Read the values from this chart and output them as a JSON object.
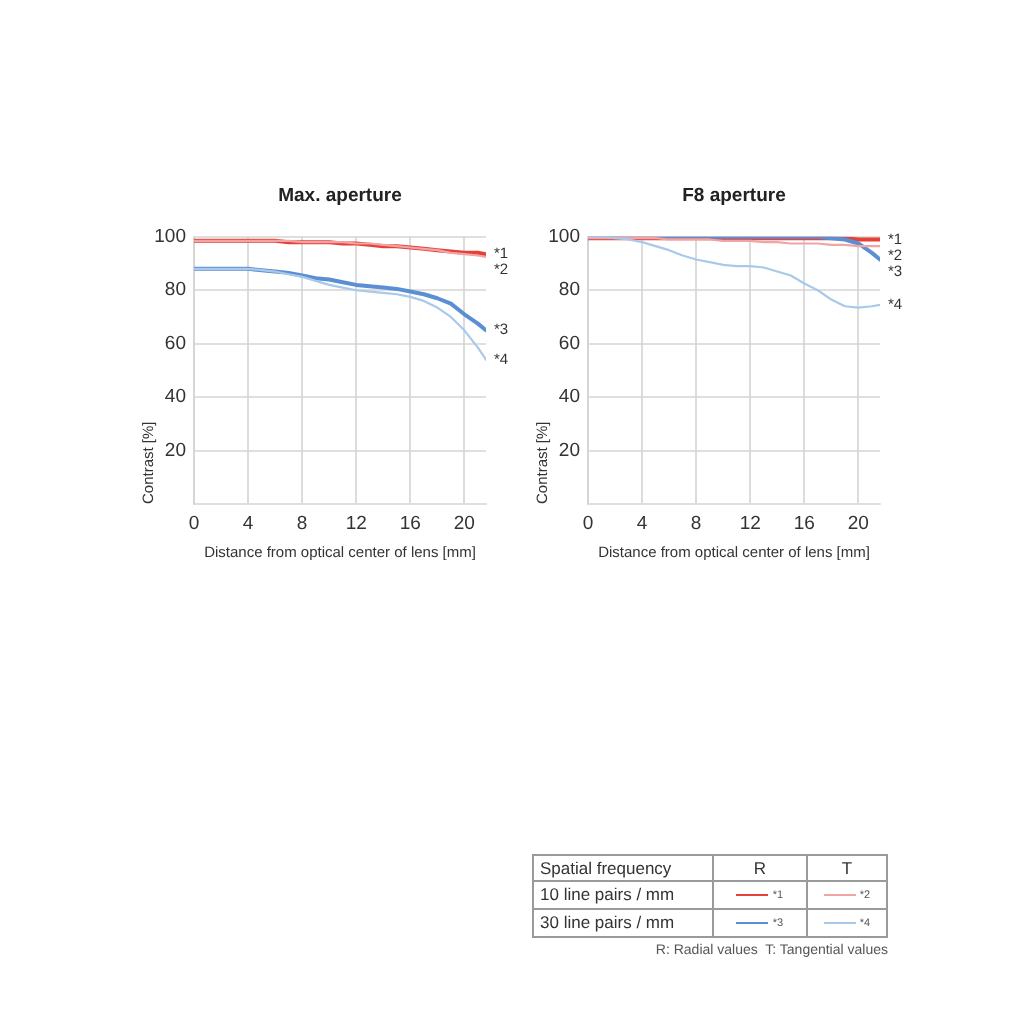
{
  "chart_data": [
    {
      "type": "line",
      "title": "Max. aperture",
      "xlabel": "Distance from optical center of lens [mm]",
      "ylabel": "Contrast [%]",
      "x": [
        0,
        1,
        2,
        3,
        4,
        5,
        6,
        7,
        8,
        9,
        10,
        11,
        12,
        13,
        14,
        15,
        16,
        17,
        18,
        19,
        20,
        21,
        21.6
      ],
      "xlim": [
        0,
        21.6
      ],
      "xticks": [
        0,
        4,
        8,
        12,
        16,
        20
      ],
      "ylim": [
        0,
        100
      ],
      "yticks": [
        20,
        40,
        60,
        80,
        100
      ],
      "grid": true,
      "marker": "none",
      "line_style": "solid",
      "series": [
        {
          "name": "*1",
          "color": "#e5403a",
          "values": [
            98.5,
            98.5,
            98.5,
            98.5,
            98.5,
            98.5,
            98.5,
            98,
            98,
            98,
            98,
            97.5,
            97.5,
            97,
            96.5,
            96.5,
            96,
            95.5,
            95,
            94.5,
            94,
            94,
            93.5
          ]
        },
        {
          "name": "*2",
          "color": "#f2a3a3",
          "values": [
            98.5,
            98.5,
            98.5,
            98.5,
            98.5,
            98.5,
            98.5,
            98.5,
            98,
            98,
            98,
            98,
            97.5,
            97.5,
            97,
            96.5,
            96,
            95.5,
            95,
            94,
            93.5,
            93,
            92.5
          ]
        },
        {
          "name": "*3",
          "color": "#5a8fd3",
          "values": [
            88,
            88,
            88,
            88,
            88,
            87.5,
            87,
            86.5,
            85.5,
            84.5,
            84,
            83,
            82,
            81.5,
            81,
            80.5,
            79.5,
            78.5,
            77,
            75,
            71,
            67.5,
            65
          ]
        },
        {
          "name": "*4",
          "color": "#a9c9ea",
          "values": [
            88,
            88,
            88,
            88,
            88,
            87.5,
            87,
            86,
            85,
            83.5,
            82,
            81,
            80,
            79.5,
            79,
            78.5,
            77.5,
            76,
            73.5,
            70,
            65,
            58.5,
            54
          ]
        }
      ]
    },
    {
      "type": "line",
      "title": "F8 aperture",
      "xlabel": "Distance from optical center of lens [mm]",
      "ylabel": "Contrast [%]",
      "x": [
        0,
        1,
        2,
        3,
        4,
        5,
        6,
        7,
        8,
        9,
        10,
        11,
        12,
        13,
        14,
        15,
        16,
        17,
        18,
        19,
        20,
        21,
        21.6
      ],
      "xlim": [
        0,
        21.6
      ],
      "xticks": [
        0,
        4,
        8,
        12,
        16,
        20
      ],
      "ylim": [
        0,
        100
      ],
      "yticks": [
        20,
        40,
        60,
        80,
        100
      ],
      "grid": true,
      "marker": "none",
      "line_style": "solid",
      "series": [
        {
          "name": "*1",
          "color": "#e5403a",
          "values": [
            99.5,
            99.5,
            99.5,
            99.5,
            99.5,
            99.5,
            99.5,
            99.5,
            99.5,
            99.5,
            99.5,
            99.5,
            99.5,
            99.5,
            99.5,
            99.5,
            99.5,
            99.5,
            99.5,
            99.5,
            99,
            99,
            99
          ]
        },
        {
          "name": "*2",
          "color": "#f2a3a3",
          "values": [
            99.5,
            99.5,
            99.5,
            99.5,
            99.5,
            99.5,
            99,
            99,
            99,
            99,
            98.5,
            98.5,
            98.5,
            98,
            98,
            97.5,
            97.5,
            97.5,
            97,
            97,
            96.5,
            96.5,
            96.5
          ]
        },
        {
          "name": "*3",
          "color": "#5a8fd3",
          "values": [
            100,
            100,
            100,
            100,
            100,
            100,
            100,
            100,
            100,
            100,
            100,
            100,
            100,
            100,
            100,
            100,
            100,
            100,
            99.5,
            99,
            97.5,
            94,
            91.5
          ]
        },
        {
          "name": "*4",
          "color": "#a9c9ea",
          "values": [
            100,
            100,
            99.5,
            99,
            98,
            96.5,
            95,
            93,
            91.5,
            90.5,
            89.5,
            89,
            89,
            88.5,
            87,
            85.5,
            82.5,
            80,
            76.5,
            74,
            73.5,
            74,
            74.5
          ]
        }
      ]
    },
    {
      "type": "other",
      "annotations": [
        "Spatial frequency",
        "R",
        "T",
        "10 line pairs / mm",
        "30 line pairs / mm",
        "R: Radial values  T: Tangential values"
      ]
    }
  ]
}
